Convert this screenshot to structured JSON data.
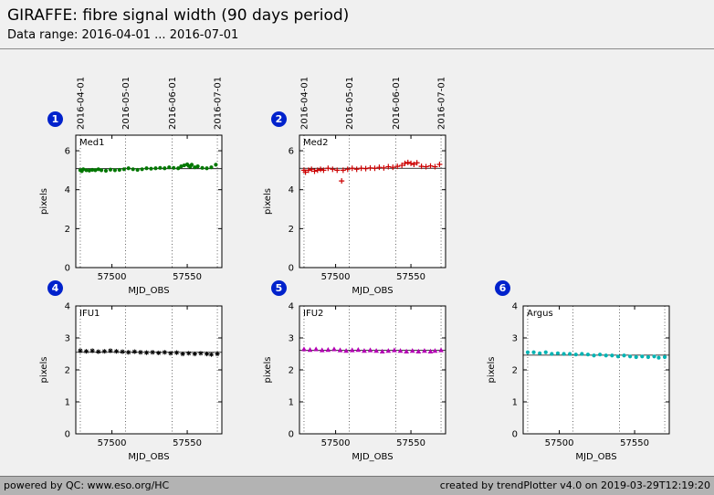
{
  "header": {
    "title": "GIRAFFE: fibre signal width (90 days period)",
    "subtitle": "Data range: 2016-04-01 ... 2016-07-01"
  },
  "footer": {
    "left": "powered by QC: www.eso.org/HC",
    "right": "created by trendPlotter v4.0 on 2019-03-29T12:19:20"
  },
  "colors": {
    "page_bg": "#f0f0f0",
    "plot_bg": "#ffffff",
    "footer_bg": "#b3b3b3",
    "badge_bg": "#0022cc",
    "grid": "#444444",
    "med1": "#007700",
    "med2": "#cc0000",
    "ifu1": "#000000",
    "ifu2": "#b300b3",
    "argus": "#00b3b3"
  },
  "chart_data": [
    {
      "type": "scatter",
      "index": 1,
      "label": "Med1",
      "marker": "circle",
      "color_key": "med1",
      "xlabel": "MJD_OBS",
      "ylabel": "pixels",
      "xlim": [
        57476,
        57573
      ],
      "ylim": [
        0,
        6.8
      ],
      "yticks": [
        0,
        2,
        4,
        6
      ],
      "xticks": [
        57500,
        57550
      ],
      "show_date_labels": true,
      "date_gridlines": [
        {
          "mjd": 57479,
          "label": "2016-04-01"
        },
        {
          "mjd": 57509,
          "label": "2016-05-01"
        },
        {
          "mjd": 57540,
          "label": "2016-06-01"
        },
        {
          "mjd": 57570,
          "label": "2016-07-01"
        }
      ],
      "ref_line": 5.08,
      "x": [
        57479,
        57480,
        57481,
        57483,
        57485,
        57487,
        57489,
        57491,
        57493,
        57496,
        57499,
        57502,
        57505,
        57508,
        57511,
        57514,
        57517,
        57520,
        57523,
        57526,
        57529,
        57532,
        57535,
        57538,
        57541,
        57544,
        57546,
        57548,
        57550,
        57551,
        57552,
        57553,
        57555,
        57557,
        57560,
        57563,
        57566,
        57569
      ],
      "y": [
        5.0,
        4.95,
        5.05,
        5.0,
        4.98,
        5.02,
        5.0,
        5.05,
        5.0,
        4.97,
        5.03,
        5.0,
        5.02,
        5.05,
        5.1,
        5.05,
        5.02,
        5.05,
        5.1,
        5.08,
        5.1,
        5.12,
        5.1,
        5.15,
        5.12,
        5.1,
        5.2,
        5.25,
        5.3,
        5.22,
        5.18,
        5.28,
        5.15,
        5.2,
        5.12,
        5.1,
        5.15,
        5.28
      ]
    },
    {
      "type": "scatter",
      "index": 2,
      "label": "Med2",
      "marker": "plus",
      "color_key": "med2",
      "xlabel": "MJD_OBS",
      "ylabel": "pixels",
      "xlim": [
        57476,
        57573
      ],
      "ylim": [
        0,
        6.8
      ],
      "yticks": [
        0,
        2,
        4,
        6
      ],
      "xticks": [
        57500,
        57550
      ],
      "show_date_labels": true,
      "date_gridlines": [
        {
          "mjd": 57479,
          "label": "2016-04-01"
        },
        {
          "mjd": 57509,
          "label": "2016-05-01"
        },
        {
          "mjd": 57540,
          "label": "2016-06-01"
        },
        {
          "mjd": 57570,
          "label": "2016-07-01"
        }
      ],
      "ref_line": 5.1,
      "x": [
        57479,
        57480,
        57482,
        57484,
        57486,
        57488,
        57490,
        57492,
        57495,
        57498,
        57501,
        57504,
        57505,
        57508,
        57511,
        57514,
        57517,
        57520,
        57523,
        57526,
        57529,
        57532,
        57535,
        57538,
        57541,
        57544,
        57546,
        57548,
        57550,
        57552,
        57554,
        57557,
        57560,
        57563,
        57566,
        57569
      ],
      "y": [
        5.0,
        4.9,
        5.0,
        5.05,
        4.95,
        5.0,
        5.05,
        5.0,
        5.1,
        5.05,
        5.0,
        4.45,
        5.0,
        5.05,
        5.1,
        5.05,
        5.1,
        5.08,
        5.12,
        5.1,
        5.15,
        5.12,
        5.18,
        5.15,
        5.2,
        5.25,
        5.35,
        5.4,
        5.35,
        5.3,
        5.38,
        5.2,
        5.18,
        5.22,
        5.18,
        5.3
      ]
    },
    {
      "type": "scatter",
      "index": 4,
      "label": "IFU1",
      "marker": "star",
      "color_key": "ifu1",
      "xlabel": "MJD_OBS",
      "ylabel": "pixels",
      "xlim": [
        57476,
        57573
      ],
      "ylim": [
        0,
        4
      ],
      "yticks": [
        0,
        1,
        2,
        3,
        4
      ],
      "xticks": [
        57500,
        57550
      ],
      "show_date_labels": false,
      "date_gridlines": [
        {
          "mjd": 57479,
          "label": "2016-04-01"
        },
        {
          "mjd": 57509,
          "label": "2016-05-01"
        },
        {
          "mjd": 57540,
          "label": "2016-06-01"
        },
        {
          "mjd": 57570,
          "label": "2016-07-01"
        }
      ],
      "ref_line": 2.55,
      "x": [
        57479,
        57483,
        57487,
        57491,
        57495,
        57499,
        57503,
        57507,
        57511,
        57515,
        57519,
        57523,
        57527,
        57531,
        57535,
        57539,
        57543,
        57547,
        57551,
        57555,
        57559,
        57563,
        57566,
        57570
      ],
      "y": [
        2.6,
        2.58,
        2.6,
        2.57,
        2.58,
        2.6,
        2.58,
        2.57,
        2.55,
        2.57,
        2.55,
        2.54,
        2.55,
        2.53,
        2.55,
        2.52,
        2.54,
        2.5,
        2.52,
        2.5,
        2.52,
        2.5,
        2.48,
        2.5
      ]
    },
    {
      "type": "scatter",
      "index": 5,
      "label": "IFU2",
      "marker": "triangle",
      "color_key": "ifu2",
      "xlabel": "MJD_OBS",
      "ylabel": "pixels",
      "xlim": [
        57476,
        57573
      ],
      "ylim": [
        0,
        4
      ],
      "yticks": [
        0,
        1,
        2,
        3,
        4
      ],
      "xticks": [
        57500,
        57550
      ],
      "show_date_labels": false,
      "date_gridlines": [
        {
          "mjd": 57479,
          "label": "2016-04-01"
        },
        {
          "mjd": 57509,
          "label": "2016-05-01"
        },
        {
          "mjd": 57540,
          "label": "2016-06-01"
        },
        {
          "mjd": 57570,
          "label": "2016-07-01"
        }
      ],
      "ref_line": 2.61,
      "x": [
        57479,
        57483,
        57487,
        57491,
        57495,
        57499,
        57503,
        57507,
        57511,
        57515,
        57519,
        57523,
        57527,
        57531,
        57535,
        57539,
        57543,
        57547,
        57551,
        57555,
        57559,
        57563,
        57566,
        57570
      ],
      "y": [
        2.65,
        2.63,
        2.65,
        2.62,
        2.63,
        2.65,
        2.62,
        2.6,
        2.62,
        2.63,
        2.6,
        2.62,
        2.6,
        2.58,
        2.6,
        2.62,
        2.6,
        2.58,
        2.6,
        2.58,
        2.6,
        2.58,
        2.6,
        2.62
      ]
    },
    {
      "type": "scatter",
      "index": 6,
      "label": "Argus",
      "marker": "circle",
      "color_key": "argus",
      "xlabel": "MJD_OBS",
      "ylabel": "pixels",
      "xlim": [
        57476,
        57573
      ],
      "ylim": [
        0,
        4
      ],
      "yticks": [
        0,
        1,
        2,
        3,
        4
      ],
      "xticks": [
        57500,
        57550
      ],
      "show_date_labels": false,
      "date_gridlines": [
        {
          "mjd": 57479,
          "label": "2016-04-01"
        },
        {
          "mjd": 57509,
          "label": "2016-05-01"
        },
        {
          "mjd": 57540,
          "label": "2016-06-01"
        },
        {
          "mjd": 57570,
          "label": "2016-07-01"
        }
      ],
      "ref_line": 2.46,
      "x": [
        57479,
        57483,
        57487,
        57491,
        57495,
        57499,
        57503,
        57507,
        57511,
        57515,
        57519,
        57523,
        57527,
        57531,
        57535,
        57539,
        57543,
        57547,
        57551,
        57555,
        57559,
        57563,
        57566,
        57570
      ],
      "y": [
        2.55,
        2.55,
        2.52,
        2.55,
        2.5,
        2.52,
        2.5,
        2.5,
        2.48,
        2.5,
        2.48,
        2.45,
        2.48,
        2.45,
        2.45,
        2.42,
        2.45,
        2.42,
        2.4,
        2.42,
        2.4,
        2.42,
        2.38,
        2.4
      ]
    }
  ]
}
